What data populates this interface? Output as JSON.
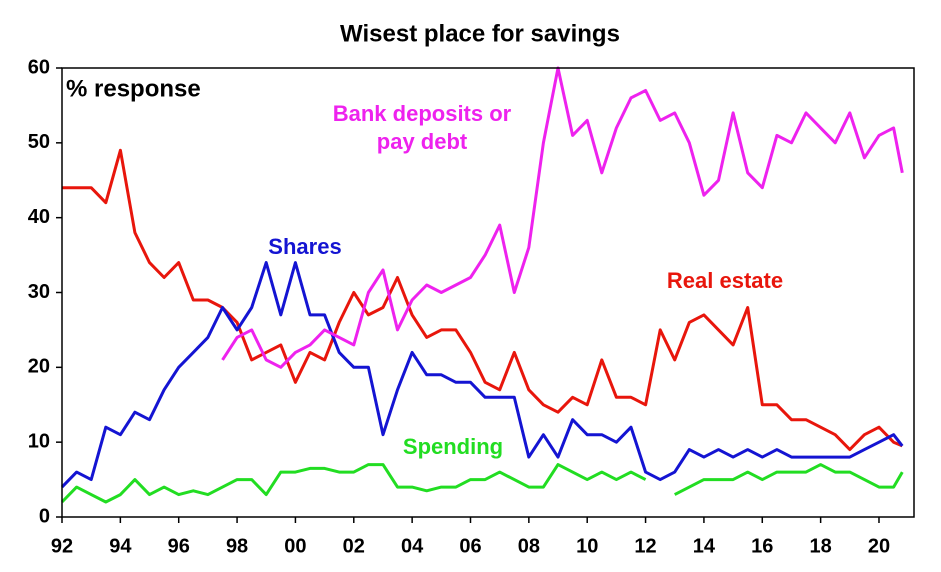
{
  "chart_data": {
    "type": "line",
    "title": "Wisest place for savings",
    "y_label": "% response",
    "x": [
      1992,
      1992.5,
      1993,
      1993.5,
      1994,
      1994.5,
      1995,
      1995.5,
      1996,
      1996.5,
      1997,
      1997.5,
      1998,
      1998.5,
      1999,
      1999.5,
      2000,
      2000.5,
      2001,
      2001.5,
      2002,
      2002.5,
      2003,
      2003.5,
      2004,
      2004.5,
      2005,
      2005.5,
      2006,
      2006.5,
      2007,
      2007.5,
      2008,
      2008.5,
      2009,
      2009.5,
      2010,
      2010.5,
      2011,
      2011.5,
      2012,
      2012.5,
      2013,
      2013.5,
      2014,
      2014.5,
      2015,
      2015.5,
      2016,
      2016.5,
      2017,
      2017.5,
      2018,
      2018.5,
      2019,
      2019.5,
      2020,
      2020.5,
      2020.8
    ],
    "series": [
      {
        "name": "Real estate",
        "color": "#e8160c",
        "values": [
          44,
          44,
          44,
          42,
          49,
          38,
          34,
          32,
          34,
          29,
          29,
          28,
          26,
          21,
          22,
          23,
          18,
          22,
          21,
          26,
          30,
          27,
          28,
          32,
          27,
          24,
          25,
          25,
          22,
          18,
          17,
          22,
          17,
          15,
          14,
          16,
          15,
          21,
          16,
          16,
          15,
          25,
          21,
          26,
          27,
          25,
          23,
          28,
          15,
          15,
          13,
          13,
          12,
          11,
          9,
          11,
          12,
          10,
          9.5
        ]
      },
      {
        "name": "Shares",
        "color": "#1414d2",
        "values": [
          4,
          6,
          5,
          12,
          11,
          14,
          13,
          17,
          20,
          22,
          24,
          28,
          25,
          28,
          34,
          27,
          34,
          27,
          27,
          22,
          20,
          20,
          11,
          17,
          22,
          19,
          19,
          18,
          18,
          16,
          16,
          16,
          8,
          11,
          8,
          13,
          11,
          11,
          10,
          12,
          6,
          5,
          6,
          9,
          8,
          9,
          8,
          9,
          8,
          9,
          8,
          8,
          8,
          8,
          8,
          9,
          10,
          11,
          9.5
        ]
      },
      {
        "name": "Bank deposits or pay debt",
        "color": "#ee22ee",
        "values": [
          null,
          null,
          null,
          null,
          null,
          null,
          null,
          null,
          null,
          null,
          null,
          21,
          24,
          25,
          21,
          20,
          22,
          23,
          25,
          24,
          23,
          30,
          33,
          25,
          29,
          31,
          30,
          31,
          32,
          35,
          39,
          30,
          36,
          50,
          60,
          51,
          53,
          46,
          52,
          56,
          57,
          53,
          54,
          50,
          43,
          45,
          54,
          46,
          44,
          51,
          50,
          54,
          52,
          50,
          54,
          48,
          51,
          52,
          46
        ]
      },
      {
        "name": "Spending",
        "color": "#22dd22",
        "values": [
          2,
          4,
          3,
          2,
          3,
          5,
          3,
          4,
          3,
          3.5,
          3,
          4,
          5,
          5,
          3,
          6,
          6,
          6.5,
          6.5,
          6,
          6,
          7,
          7,
          4,
          4,
          3.5,
          4,
          4,
          5,
          5,
          6,
          5,
          4,
          4,
          7,
          6,
          5,
          6,
          5,
          6,
          5,
          null,
          3,
          4,
          5,
          5,
          5,
          6,
          5,
          6,
          6,
          6,
          7,
          6,
          6,
          5,
          4,
          4,
          6
        ]
      }
    ],
    "xlim": [
      1992,
      2021.2
    ],
    "xticks": [
      {
        "value": 1992,
        "label": "92"
      },
      {
        "value": 1994,
        "label": "94"
      },
      {
        "value": 1996,
        "label": "96"
      },
      {
        "value": 1998,
        "label": "98"
      },
      {
        "value": 2000,
        "label": "00"
      },
      {
        "value": 2002,
        "label": "02"
      },
      {
        "value": 2004,
        "label": "04"
      },
      {
        "value": 2006,
        "label": "06"
      },
      {
        "value": 2008,
        "label": "08"
      },
      {
        "value": 2010,
        "label": "10"
      },
      {
        "value": 2012,
        "label": "12"
      },
      {
        "value": 2014,
        "label": "14"
      },
      {
        "value": 2016,
        "label": "16"
      },
      {
        "value": 2018,
        "label": "18"
      },
      {
        "value": 2020,
        "label": "20"
      }
    ],
    "ylim": [
      0,
      60
    ],
    "yticks": [
      0,
      10,
      20,
      30,
      40,
      50,
      60
    ],
    "grid": false
  }
}
